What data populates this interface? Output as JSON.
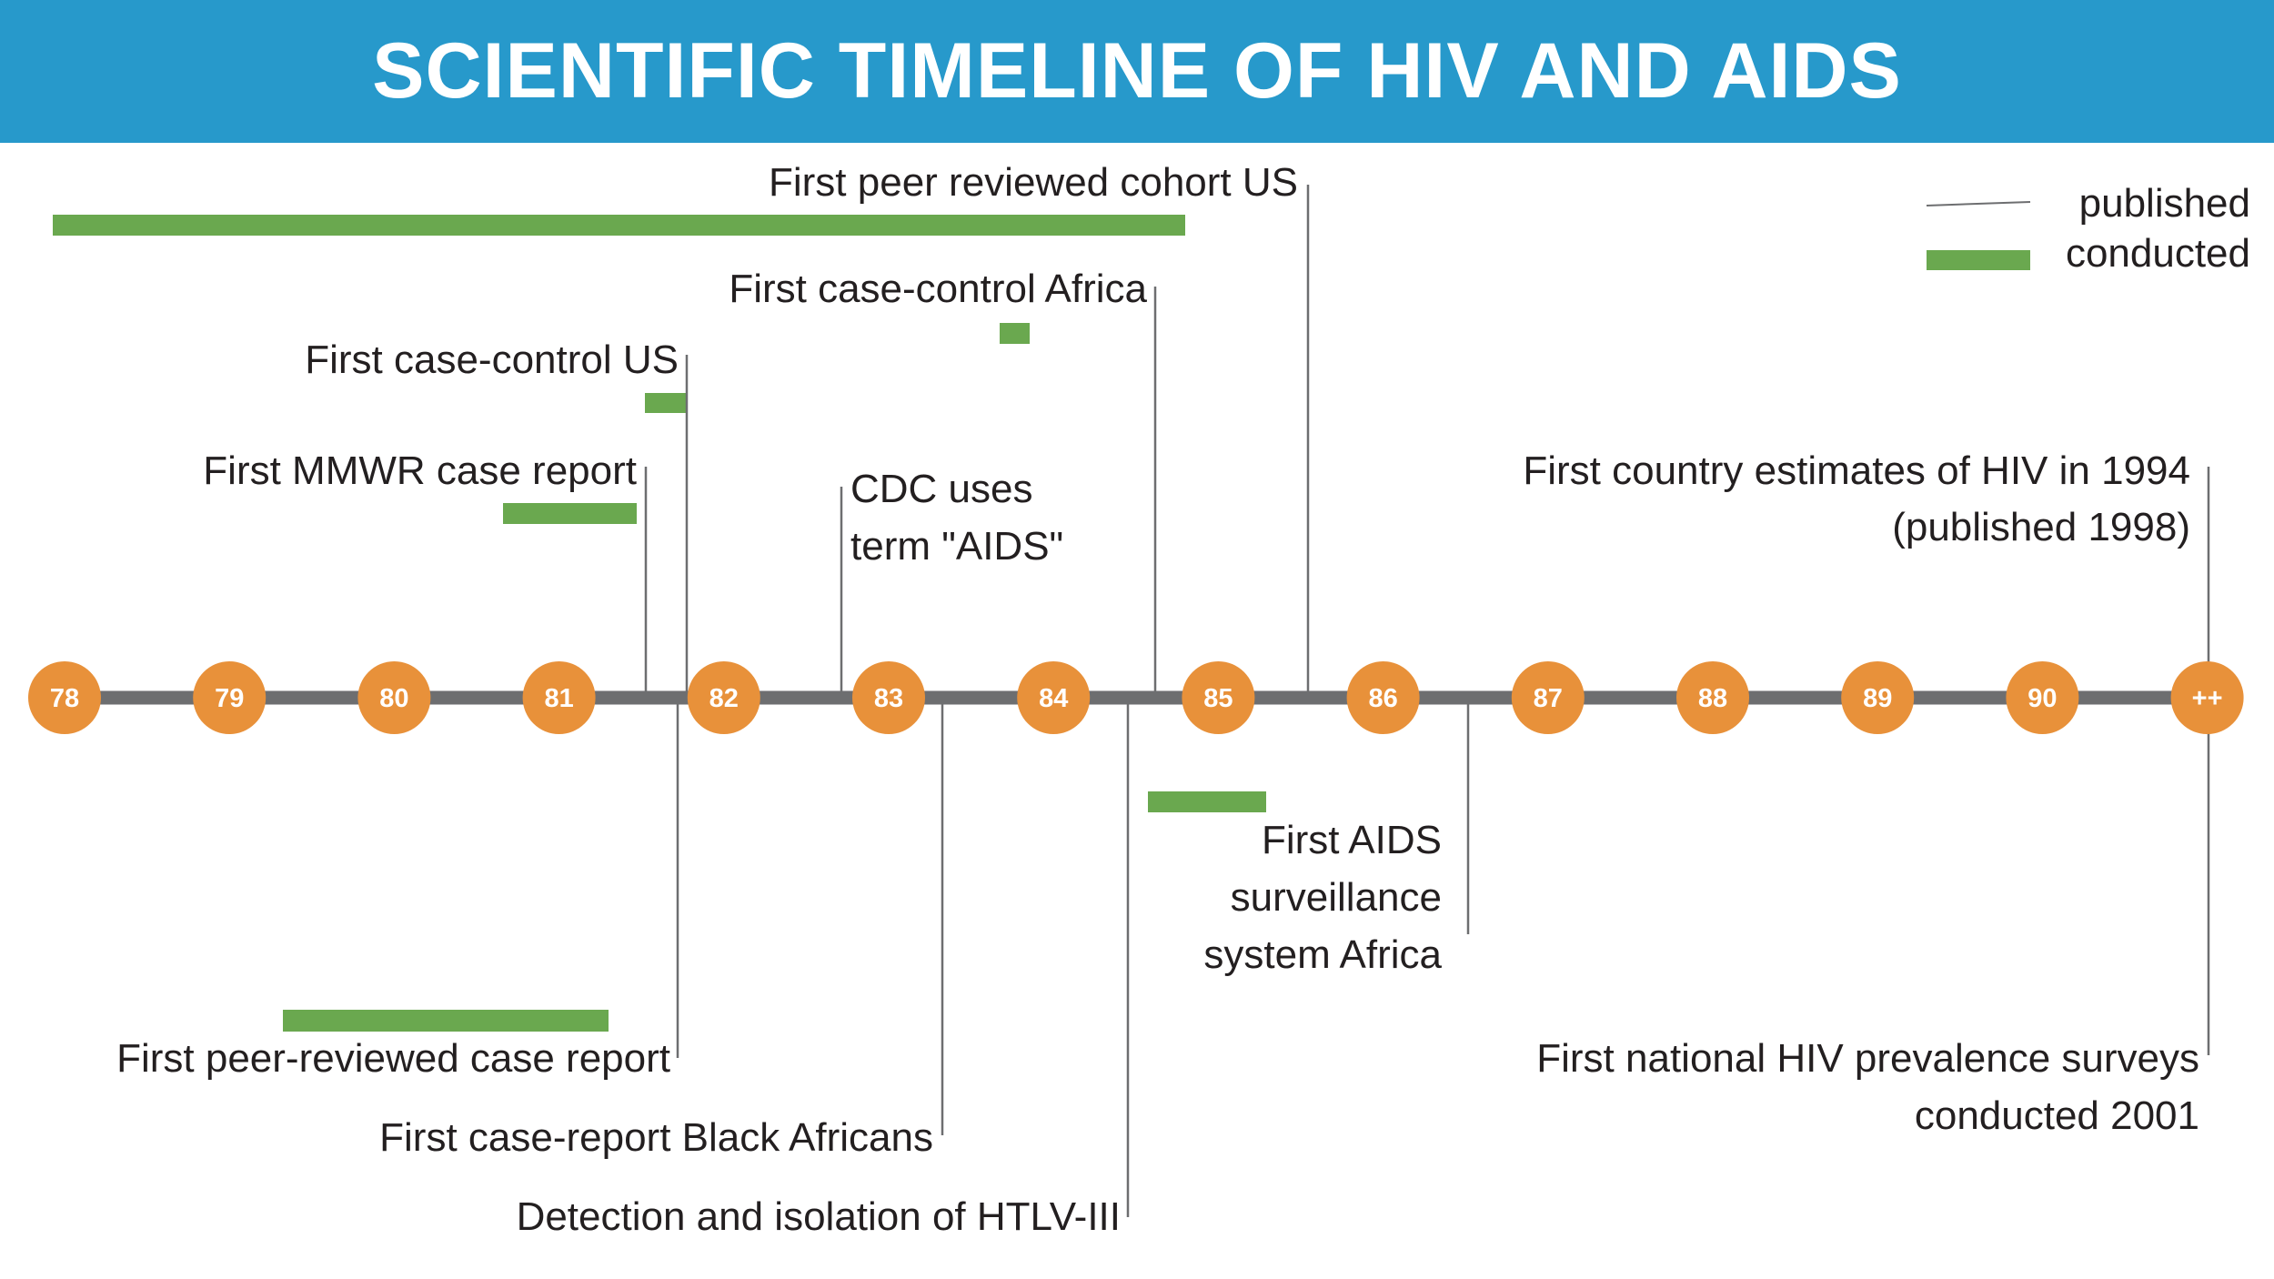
{
  "header": {
    "title": "SCIENTIFIC TIMELINE OF HIV AND AIDS"
  },
  "legend": {
    "published": "published",
    "conducted": "conducted"
  },
  "years": [
    "78",
    "79",
    "80",
    "81",
    "82",
    "83",
    "84",
    "85",
    "86",
    "87",
    "88",
    "89",
    "90",
    "++"
  ],
  "colors": {
    "header_bg": "#2799cb",
    "year_circle": "#e8913a",
    "conducted_bar": "#6aa84f",
    "axis": "#6d6e70",
    "published_line": "#6d6e70"
  },
  "events": {
    "mmwr": "First MMWR case report",
    "cc_us": "First case-control US",
    "cohort_us": "First peer reviewed cohort US",
    "cc_africa": "First case-control Africa",
    "cdc_aids": [
      "CDC uses",
      "term \"AIDS\""
    ],
    "country_est": [
      "First country estimates of HIV in 1994",
      "(published 1998)"
    ],
    "peer_case": "First peer-reviewed case report",
    "black_africans": "First case-report Black Africans",
    "htlv": "Detection and isolation of HTLV-III",
    "surveillance": [
      "First AIDS",
      "surveillance",
      "system Africa"
    ],
    "prevalence": [
      "First national HIV prevalence surveys",
      "conducted 2001"
    ]
  }
}
